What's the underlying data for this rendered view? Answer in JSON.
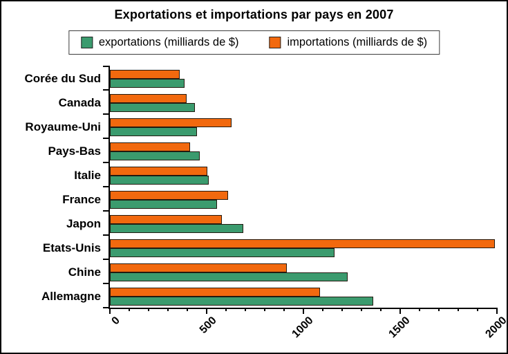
{
  "title": "Exportations et importations par pays en 2007",
  "legend": {
    "items": [
      {
        "key": "exportations",
        "label": "exportations (milliards de $)",
        "color": "#3B9B6E"
      },
      {
        "key": "importations",
        "label": "importations (milliards de $)",
        "color": "#F2690E"
      }
    ]
  },
  "colors": {
    "exportations": "#3B9B6E",
    "importations": "#F2690E",
    "bar_border": "#231a10",
    "axis": "#000000",
    "background": "#ffffff"
  },
  "chart_data": {
    "type": "bar",
    "orientation": "horizontal",
    "title": "Exportations et importations par pays en 2007",
    "unit": "milliards de $",
    "categories": [
      "Corée du Sud",
      "Canada",
      "Royaume-Uni",
      "Pays-Bas",
      "Italie",
      "France",
      "Japon",
      "Etats-Unis",
      "Chine",
      "Allemagne"
    ],
    "series": [
      {
        "key": "exportations",
        "name": "exportations (milliards de $)",
        "color": "#3B9B6E",
        "values": [
          385,
          440,
          450,
          465,
          510,
          555,
          690,
          1160,
          1230,
          1360
        ]
      },
      {
        "key": "importations",
        "name": "importations (milliards de $)",
        "color": "#F2690E",
        "values": [
          360,
          395,
          630,
          415,
          505,
          610,
          580,
          1990,
          915,
          1085
        ]
      }
    ],
    "xlabel": "",
    "ylabel": "",
    "xlim": [
      0,
      2000
    ],
    "x_ticks_major": [
      0,
      500,
      1000,
      1500,
      2000
    ],
    "x_tick_minor_step": 100,
    "x_tick_labels_rotation_deg": -45,
    "grid": false,
    "legend_position": "top",
    "bar_order_within_group_top_to_bottom": [
      "importations",
      "exportations"
    ]
  }
}
